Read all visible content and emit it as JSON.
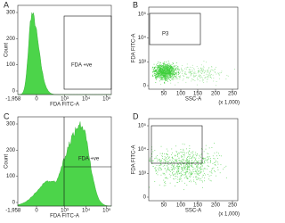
{
  "panels": [
    {
      "letter": "A",
      "y_title": "Count",
      "x_title": "FDA FITC-A",
      "y_ticks": [
        "300",
        "200",
        "100",
        "0"
      ],
      "x_ticks": [
        "-1,958",
        "0",
        "10³",
        "10⁴",
        "10⁵"
      ],
      "gate": "FDA +ve"
    },
    {
      "letter": "B",
      "y_title": "FDA FITC-A",
      "x_title": "SSC-A",
      "y_ticks": [
        "10⁵",
        "10⁴",
        "10³",
        "0"
      ],
      "x_ticks": [
        "50",
        "100",
        "150",
        "200",
        "250"
      ],
      "x_unit": "(x 1,000)",
      "gate": "P3"
    },
    {
      "letter": "C",
      "y_title": "Count",
      "x_title": "FDA FITC-A",
      "y_ticks": [
        "300",
        "200",
        "100",
        "0"
      ],
      "x_ticks": [
        "-1,958",
        "0",
        "10³",
        "10⁴",
        "10⁵"
      ],
      "gate": "FDA +ve"
    },
    {
      "letter": "D",
      "y_title": "FDA FITC-A",
      "x_title": "SSC-A",
      "y_ticks": [
        "10⁵",
        "10⁴",
        "10³",
        "0"
      ],
      "x_ticks": [
        "50",
        "100",
        "150",
        "200",
        "250"
      ],
      "x_unit": "(x 1,000)"
    }
  ]
}
